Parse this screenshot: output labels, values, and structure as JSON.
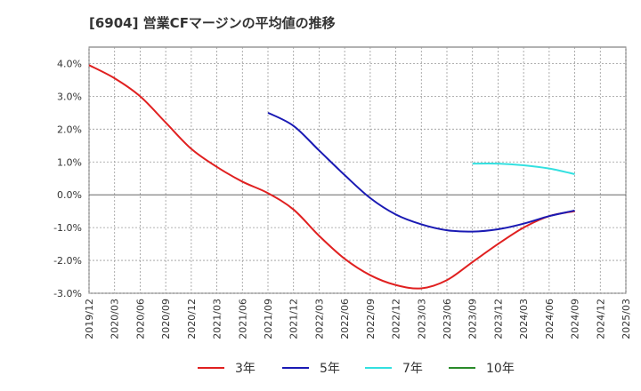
{
  "title": "[6904]  営業CFマージンの平均値の推移",
  "chart_data": {
    "type": "line",
    "title": "[6904]  営業CFマージンの平均値の推移",
    "xlabel": "",
    "ylabel": "",
    "ylim": [
      -3.0,
      4.5
    ],
    "y_ticks": [
      "-3.0%",
      "-2.0%",
      "-1.0%",
      "0.0%",
      "1.0%",
      "2.0%",
      "3.0%",
      "4.0%"
    ],
    "y_tick_values": [
      -3,
      -2,
      -1,
      0,
      1,
      2,
      3,
      4
    ],
    "x_ticks": [
      "2019/12",
      "2020/03",
      "2020/06",
      "2020/09",
      "2020/12",
      "2021/03",
      "2021/06",
      "2021/09",
      "2021/12",
      "2022/03",
      "2022/06",
      "2022/09",
      "2022/12",
      "2023/03",
      "2023/06",
      "2023/09",
      "2023/12",
      "2024/03",
      "2024/06",
      "2024/09",
      "2024/12",
      "2025/03"
    ],
    "grid": true,
    "legend_position": "bottom",
    "series": [
      {
        "name": "3年",
        "color": "#e02020",
        "x": [
          "2019/12",
          "2020/03",
          "2020/06",
          "2020/09",
          "2020/12",
          "2021/03",
          "2021/06",
          "2021/09",
          "2021/12",
          "2022/03",
          "2022/06",
          "2022/09",
          "2022/12",
          "2023/03",
          "2023/06",
          "2023/09",
          "2023/12",
          "2024/03",
          "2024/06",
          "2024/09"
        ],
        "values": [
          3.95,
          3.55,
          3.0,
          2.2,
          1.4,
          0.85,
          0.4,
          0.05,
          -0.45,
          -1.25,
          -1.95,
          -2.45,
          -2.75,
          -2.85,
          -2.6,
          -2.05,
          -1.5,
          -1.0,
          -0.65,
          -0.5
        ]
      },
      {
        "name": "5年",
        "color": "#1a1ab4",
        "x": [
          "2021/09",
          "2021/12",
          "2022/03",
          "2022/06",
          "2022/09",
          "2022/12",
          "2023/03",
          "2023/06",
          "2023/09",
          "2023/12",
          "2024/03",
          "2024/06",
          "2024/09"
        ],
        "values": [
          2.5,
          2.1,
          1.35,
          0.6,
          -0.1,
          -0.6,
          -0.9,
          -1.08,
          -1.12,
          -1.05,
          -0.88,
          -0.65,
          -0.48
        ]
      },
      {
        "name": "7年",
        "color": "#33e0e0",
        "x": [
          "2023/09",
          "2023/12",
          "2024/03",
          "2024/06",
          "2024/09"
        ],
        "values": [
          0.95,
          0.95,
          0.9,
          0.8,
          0.63
        ]
      },
      {
        "name": "10年",
        "color": "#2a8a2a",
        "x": [],
        "values": []
      }
    ]
  }
}
